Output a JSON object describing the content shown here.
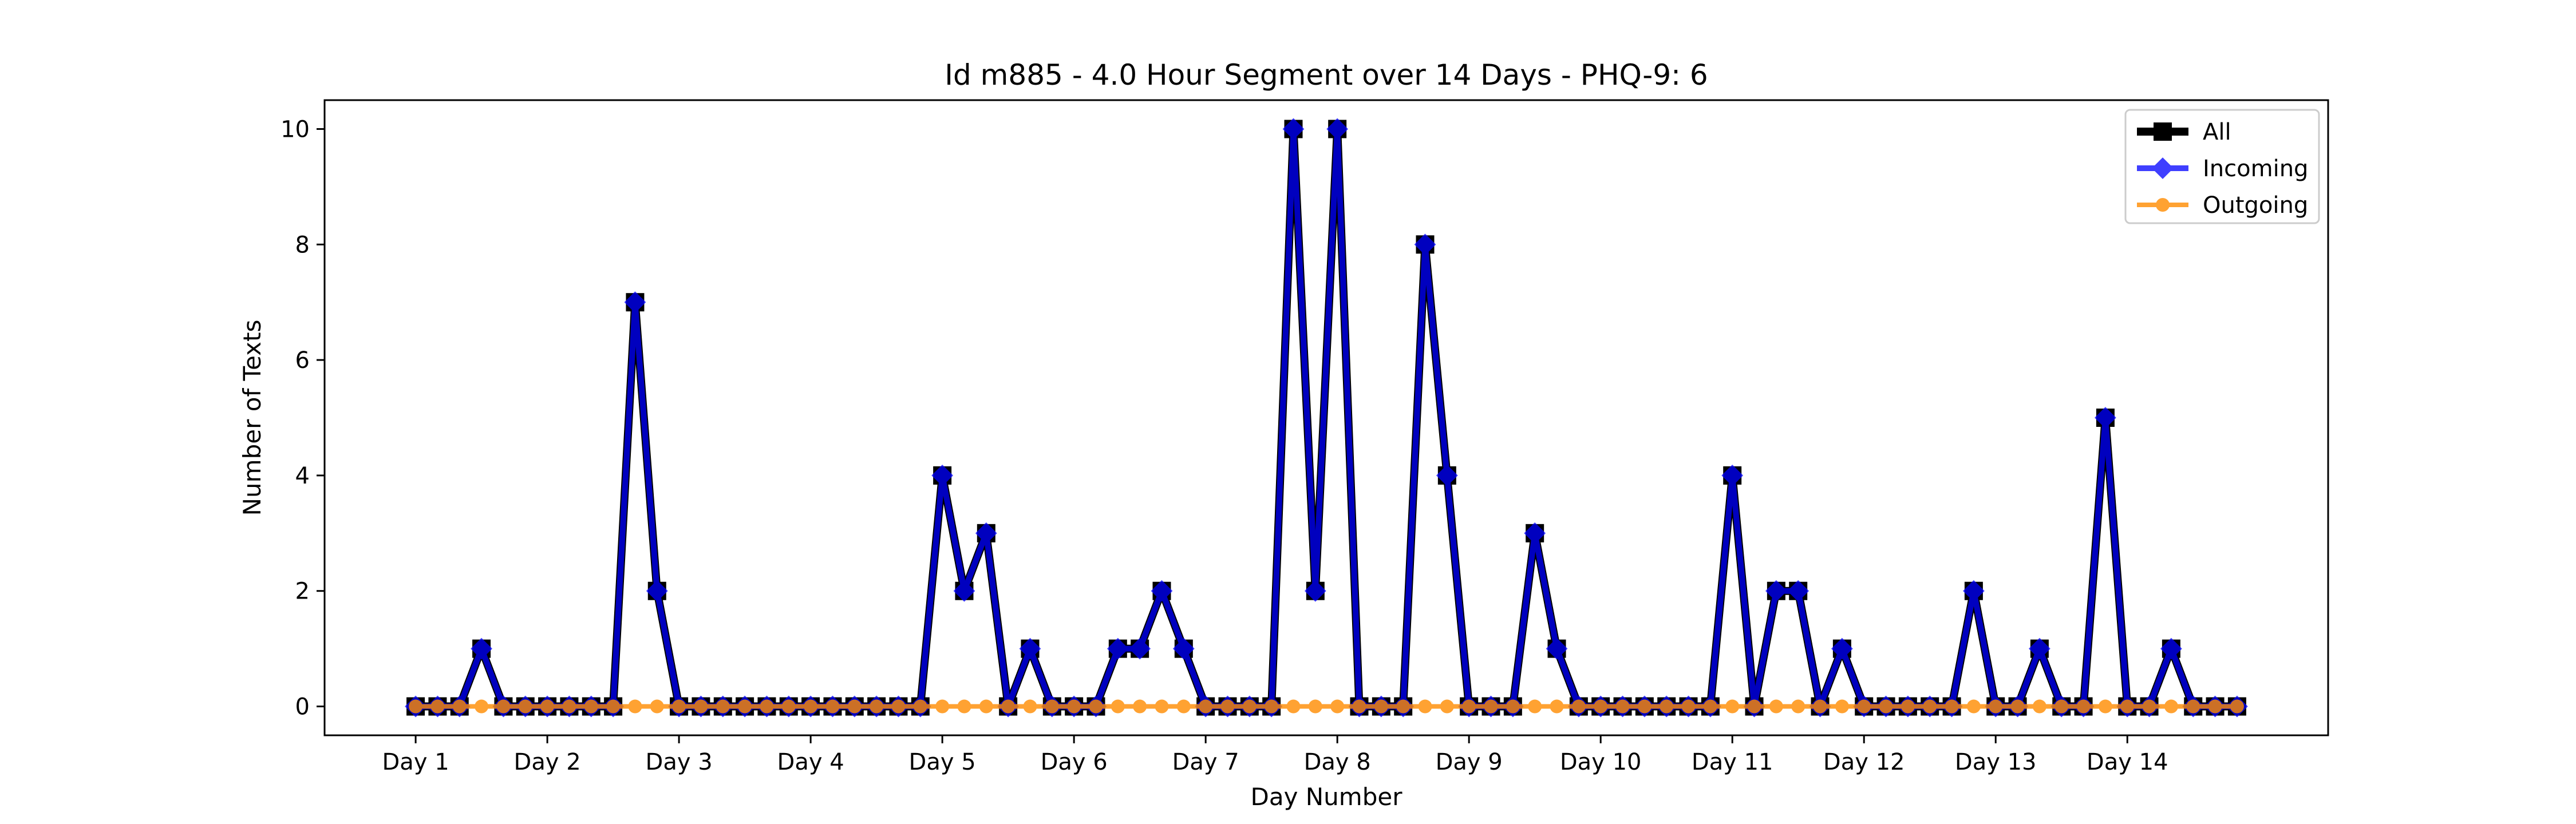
{
  "chart_data": {
    "type": "line",
    "title": "Id m885 - 4.0 Hour Segment over 14 Days - PHQ-9: 6",
    "xlabel": "Day Number",
    "ylabel": "Number of Texts",
    "ylim": [
      -0.5,
      10.5
    ],
    "y_ticks": [
      0,
      2,
      4,
      6,
      8,
      10
    ],
    "x_tick_positions": [
      0,
      6,
      12,
      18,
      24,
      30,
      36,
      42,
      48,
      54,
      60,
      66,
      72,
      78
    ],
    "x_tick_labels": [
      "Day 1",
      "Day 2",
      "Day 3",
      "Day 4",
      "Day 5",
      "Day 6",
      "Day 7",
      "Day 8",
      "Day 9",
      "Day 10",
      "Day 11",
      "Day 12",
      "Day 13",
      "Day 14"
    ],
    "legend_position": "top-right",
    "grid": false,
    "series": [
      {
        "name": "All",
        "color": "#000000",
        "marker": "square",
        "values": [
          0,
          0,
          0,
          1,
          0,
          0,
          0,
          0,
          0,
          0,
          7,
          2,
          0,
          0,
          0,
          0,
          0,
          0,
          0,
          0,
          0,
          0,
          0,
          0,
          4,
          2,
          3,
          0,
          1,
          0,
          0,
          0,
          1,
          1,
          2,
          1,
          0,
          0,
          0,
          0,
          10,
          2,
          10,
          0,
          0,
          0,
          8,
          4,
          0,
          0,
          0,
          3,
          1,
          0,
          0,
          0,
          0,
          0,
          0,
          0,
          4,
          0,
          2,
          2,
          0,
          1,
          0,
          0,
          0,
          0,
          0,
          2,
          0,
          0,
          1,
          0,
          0,
          5,
          0,
          0,
          1,
          0,
          0,
          0
        ]
      },
      {
        "name": "Incoming",
        "color": "#0000ff",
        "marker": "diamond",
        "values": [
          0,
          0,
          0,
          1,
          0,
          0,
          0,
          0,
          0,
          0,
          7,
          2,
          0,
          0,
          0,
          0,
          0,
          0,
          0,
          0,
          0,
          0,
          0,
          0,
          4,
          2,
          3,
          0,
          1,
          0,
          0,
          0,
          1,
          1,
          2,
          1,
          0,
          0,
          0,
          0,
          10,
          2,
          10,
          0,
          0,
          0,
          8,
          4,
          0,
          0,
          0,
          3,
          1,
          0,
          0,
          0,
          0,
          0,
          0,
          0,
          4,
          0,
          2,
          2,
          0,
          1,
          0,
          0,
          0,
          0,
          0,
          2,
          0,
          0,
          1,
          0,
          0,
          5,
          0,
          0,
          1,
          0,
          0,
          0
        ]
      },
      {
        "name": "Outgoing",
        "color": "#ff8c00",
        "marker": "circle",
        "values": [
          0,
          0,
          0,
          0,
          0,
          0,
          0,
          0,
          0,
          0,
          0,
          0,
          0,
          0,
          0,
          0,
          0,
          0,
          0,
          0,
          0,
          0,
          0,
          0,
          0,
          0,
          0,
          0,
          0,
          0,
          0,
          0,
          0,
          0,
          0,
          0,
          0,
          0,
          0,
          0,
          0,
          0,
          0,
          0,
          0,
          0,
          0,
          0,
          0,
          0,
          0,
          0,
          0,
          0,
          0,
          0,
          0,
          0,
          0,
          0,
          0,
          0,
          0,
          0,
          0,
          0,
          0,
          0,
          0,
          0,
          0,
          0,
          0,
          0,
          0,
          0,
          0,
          0,
          0,
          0,
          0,
          0,
          0,
          0
        ]
      }
    ]
  }
}
